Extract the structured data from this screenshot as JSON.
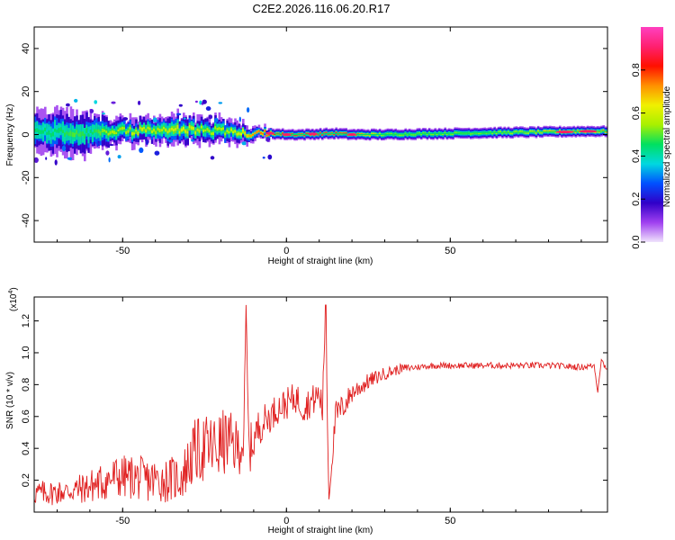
{
  "title": "C2E2.2026.116.06.20.R17",
  "chart_data": [
    {
      "type": "heatmap",
      "xlabel": "Height of straight line (km)",
      "ylabel": "Frequency (Hz)",
      "xlim": [
        -77,
        98
      ],
      "ylim": [
        -50,
        50
      ],
      "xticks": [
        -50,
        0,
        50
      ],
      "yticks": [
        -40,
        -20,
        0,
        20,
        40
      ],
      "xtick_labels": [
        "-50",
        "0",
        "50"
      ],
      "ytick_labels": [
        "-40",
        "-20",
        "0",
        "20",
        "40"
      ],
      "grid": false,
      "colorbar": {
        "label": "Normalized spectral amplitude",
        "range": [
          0,
          1
        ],
        "ticks": [
          0.0,
          0.2,
          0.4,
          0.6,
          0.8
        ],
        "tick_labels": [
          "0.0",
          "0.2",
          "0.4",
          "0.6",
          "0.8"
        ],
        "colors": [
          "#f0e4fc",
          "#a040f0",
          "#3000c8",
          "#0050ff",
          "#00d8e0",
          "#00e060",
          "#a8f000",
          "#f0f000",
          "#ff9000",
          "#ff1000",
          "#ff2070",
          "#ff40c0"
        ]
      },
      "ridge": {
        "x": [
          -77,
          -70,
          -65,
          -60,
          -55,
          -50,
          -45,
          -40,
          -35,
          -30,
          -25,
          -20,
          -15,
          -10,
          -5,
          0,
          5,
          10,
          15,
          20,
          30,
          40,
          50,
          60,
          70,
          80,
          90,
          98
        ],
        "center_hz": [
          1.5,
          1.0,
          0.5,
          0.5,
          1.5,
          1.5,
          2.0,
          2.0,
          2.5,
          2.5,
          2.0,
          1.5,
          1.0,
          0.5,
          0.5,
          0.0,
          0.0,
          0.3,
          0.5,
          0.0,
          0.0,
          0.3,
          0.5,
          0.8,
          1.0,
          1.2,
          1.5,
          1.5
        ],
        "spread_hz": [
          9,
          10,
          10,
          9,
          7,
          6,
          6,
          6,
          7,
          7,
          6,
          6,
          5,
          3,
          2.5,
          2.5,
          2.5,
          2.5,
          2.5,
          2.5,
          2.5,
          2.5,
          2.5,
          2.5,
          2.5,
          2.5,
          2.5,
          2.5
        ],
        "peak_amplitude": [
          0.45,
          0.45,
          0.5,
          0.45,
          0.55,
          0.55,
          0.6,
          0.55,
          0.6,
          0.6,
          0.55,
          0.55,
          0.6,
          0.75,
          0.8,
          0.9,
          0.85,
          0.9,
          0.85,
          0.85,
          0.55,
          0.55,
          0.55,
          0.55,
          0.6,
          0.7,
          0.75,
          0.75
        ]
      }
    },
    {
      "type": "line",
      "xlabel": "Height of straight line (km)",
      "ylabel": "SNR (10 * v/v)",
      "y_scale_label": "(x10",
      "y_scale_exponent": "4",
      "y_scale_suffix": ")",
      "xlim": [
        -77,
        98
      ],
      "ylim": [
        0,
        1.35
      ],
      "xticks": [
        -50,
        0,
        50
      ],
      "yticks": [
        0.2,
        0.4,
        0.6,
        0.8,
        1.0,
        1.2
      ],
      "xtick_labels": [
        "-50",
        "0",
        "50"
      ],
      "ytick_labels": [
        "0.2",
        "0.4",
        "0.6",
        "0.8",
        "1.0",
        "1.2"
      ],
      "grid": false,
      "series": [
        {
          "name": "SNR",
          "color": "#e02020",
          "x": [
            -77,
            -72,
            -67,
            -62,
            -57,
            -52,
            -47,
            -42,
            -37,
            -32,
            -30,
            -28,
            -25,
            -22,
            -20,
            -18,
            -15,
            -13,
            -12.3,
            -11.5,
            -10,
            -8,
            -5,
            -3,
            0,
            3,
            5,
            8,
            10,
            11,
            12,
            12.5,
            13,
            15,
            18,
            20,
            25,
            30,
            35,
            40,
            45,
            50,
            60,
            70,
            80,
            90,
            94,
            95,
            96,
            98
          ],
          "values": [
            0.12,
            0.12,
            0.13,
            0.15,
            0.18,
            0.22,
            0.22,
            0.2,
            0.2,
            0.22,
            0.3,
            0.38,
            0.4,
            0.4,
            0.42,
            0.45,
            0.4,
            0.45,
            1.3,
            0.38,
            0.45,
            0.55,
            0.6,
            0.65,
            0.68,
            0.72,
            0.66,
            0.7,
            0.74,
            0.65,
            1.3,
            0.6,
            0.08,
            0.6,
            0.68,
            0.75,
            0.82,
            0.87,
            0.9,
            0.91,
            0.92,
            0.92,
            0.92,
            0.92,
            0.92,
            0.91,
            0.92,
            0.75,
            0.95,
            0.9
          ],
          "noise_amplitude": [
            0.08,
            0.08,
            0.08,
            0.1,
            0.12,
            0.14,
            0.14,
            0.14,
            0.14,
            0.15,
            0.18,
            0.2,
            0.22,
            0.22,
            0.22,
            0.2,
            0.18,
            0.18,
            0.0,
            0.16,
            0.14,
            0.12,
            0.1,
            0.1,
            0.1,
            0.1,
            0.1,
            0.1,
            0.1,
            0.12,
            0.0,
            0.12,
            0.0,
            0.1,
            0.08,
            0.07,
            0.05,
            0.04,
            0.03,
            0.02,
            0.02,
            0.02,
            0.02,
            0.02,
            0.02,
            0.02,
            0.02,
            0.0,
            0.03,
            0.02
          ]
        }
      ]
    }
  ]
}
